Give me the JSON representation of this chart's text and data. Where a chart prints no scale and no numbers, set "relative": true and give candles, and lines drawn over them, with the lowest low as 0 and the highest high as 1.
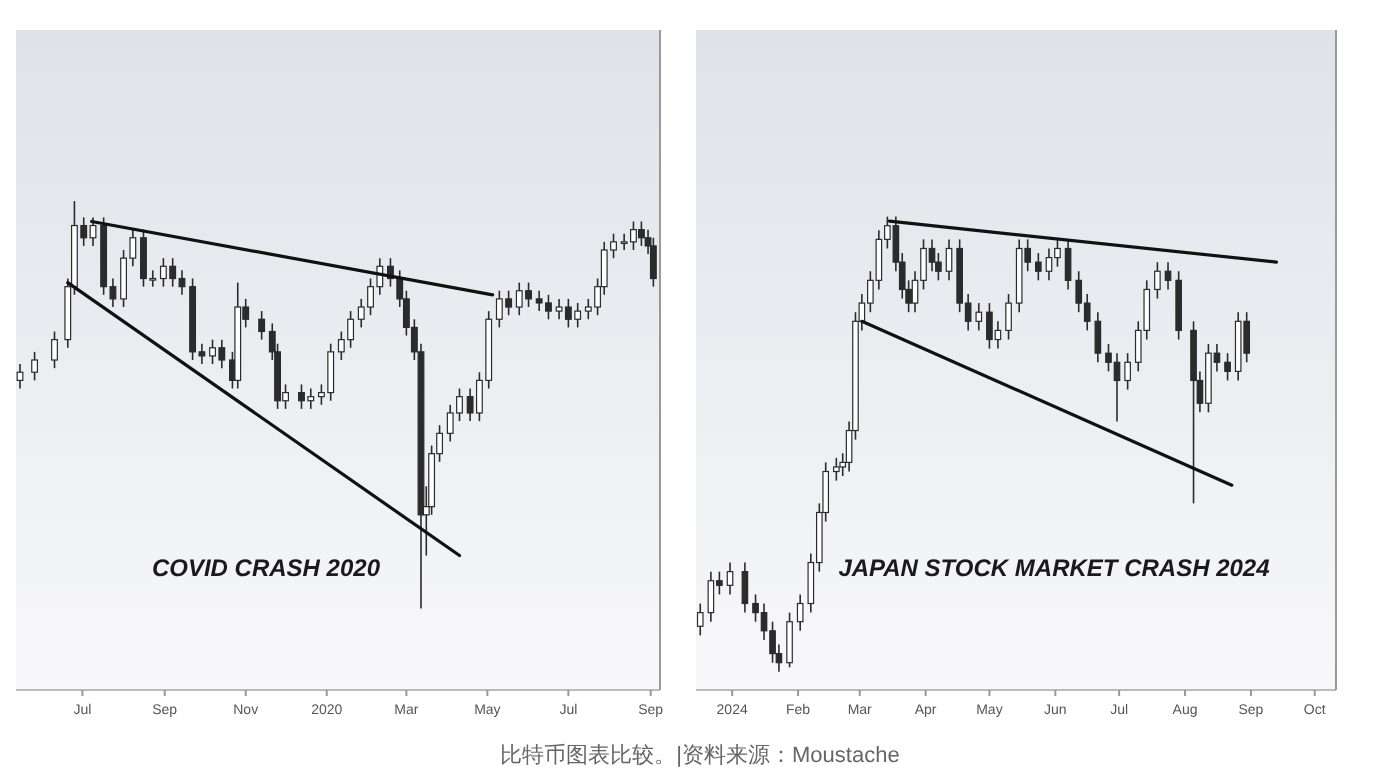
{
  "chart_data": [
    {
      "type": "candlestick",
      "relative": true,
      "xlim": [
        "2019-05-12",
        "2020-09-08"
      ],
      "xticks": [
        {
          "value": "2019-07-01",
          "label": "Jul"
        },
        {
          "value": "2019-09-01",
          "label": "Sep"
        },
        {
          "value": "2019-11-01",
          "label": "Nov"
        },
        {
          "value": "2020-01-01",
          "label": "2020"
        },
        {
          "value": "2020-03-01",
          "label": "Mar"
        },
        {
          "value": "2020-05-01",
          "label": "May"
        },
        {
          "value": "2020-07-01",
          "label": "Jul"
        },
        {
          "value": "2020-09-01",
          "label": "Sep"
        }
      ],
      "tick_labels": "x",
      "annotations": [
        "COVID CRASH 2020"
      ],
      "series": [
        {
          "color": "#2b2b2b",
          "x": [
            "2019-05-15",
            "2019-05-26",
            "2019-06-10",
            "2019-06-20",
            "2019-06-25",
            "2019-07-02",
            "2019-07-09",
            "2019-07-17",
            "2019-07-24",
            "2019-08-01",
            "2019-08-08",
            "2019-08-16",
            "2019-08-23",
            "2019-08-31",
            "2019-09-07",
            "2019-09-14",
            "2019-09-22",
            "2019-09-29",
            "2019-10-07",
            "2019-10-14",
            "2019-10-22",
            "2019-10-26",
            "2019-11-01",
            "2019-11-13",
            "2019-11-21",
            "2019-11-25",
            "2019-12-01",
            "2019-12-13",
            "2019-12-20",
            "2019-12-28",
            "2020-01-04",
            "2020-01-12",
            "2020-01-19",
            "2020-01-27",
            "2020-02-03",
            "2020-02-10",
            "2020-02-18",
            "2020-02-25",
            "2020-03-01",
            "2020-03-07",
            "2020-03-12",
            "2020-03-16",
            "2020-03-20",
            "2020-03-26",
            "2020-04-03",
            "2020-04-10",
            "2020-04-18",
            "2020-04-25",
            "2020-05-02",
            "2020-05-10",
            "2020-05-17",
            "2020-05-25",
            "2020-06-01",
            "2020-06-09",
            "2020-06-16",
            "2020-06-24",
            "2020-07-01",
            "2020-07-08",
            "2020-07-16",
            "2020-07-23",
            "2020-07-28",
            "2020-08-04",
            "2020-08-12",
            "2020-08-19",
            "2020-08-25",
            "2020-08-30",
            "2020-09-03"
          ],
          "ohlc": [
            [
              0.56,
              0.6,
              0.54,
              0.58
            ],
            [
              0.58,
              0.63,
              0.56,
              0.61
            ],
            [
              0.61,
              0.68,
              0.59,
              0.66
            ],
            [
              0.66,
              0.81,
              0.64,
              0.79
            ],
            [
              0.79,
              1,
              0.77,
              0.94
            ],
            [
              0.94,
              0.96,
              0.89,
              0.91
            ],
            [
              0.91,
              0.96,
              0.89,
              0.94
            ],
            [
              0.94,
              0.96,
              0.77,
              0.79
            ],
            [
              0.79,
              0.81,
              0.74,
              0.76
            ],
            [
              0.76,
              0.88,
              0.74,
              0.86
            ],
            [
              0.86,
              0.93,
              0.84,
              0.91
            ],
            [
              0.91,
              0.93,
              0.79,
              0.81
            ],
            [
              0.81,
              0.83,
              0.79,
              0.81
            ],
            [
              0.81,
              0.86,
              0.79,
              0.84
            ],
            [
              0.84,
              0.86,
              0.79,
              0.81
            ],
            [
              0.81,
              0.83,
              0.77,
              0.79
            ],
            [
              0.79,
              0.81,
              0.61,
              0.63
            ],
            [
              0.63,
              0.65,
              0.6,
              0.62
            ],
            [
              0.62,
              0.66,
              0.6,
              0.64
            ],
            [
              0.64,
              0.66,
              0.59,
              0.61
            ],
            [
              0.61,
              0.63,
              0.54,
              0.56
            ],
            [
              0.56,
              0.8,
              0.54,
              0.74
            ],
            [
              0.74,
              0.76,
              0.69,
              0.71
            ],
            [
              0.71,
              0.73,
              0.66,
              0.68
            ],
            [
              0.68,
              0.7,
              0.61,
              0.63
            ],
            [
              0.63,
              0.65,
              0.49,
              0.51
            ],
            [
              0.51,
              0.55,
              0.49,
              0.53
            ],
            [
              0.53,
              0.55,
              0.49,
              0.51
            ],
            [
              0.51,
              0.54,
              0.49,
              0.52
            ],
            [
              0.52,
              0.55,
              0.5,
              0.53
            ],
            [
              0.53,
              0.65,
              0.51,
              0.63
            ],
            [
              0.63,
              0.68,
              0.61,
              0.66
            ],
            [
              0.66,
              0.73,
              0.64,
              0.71
            ],
            [
              0.71,
              0.76,
              0.69,
              0.74
            ],
            [
              0.74,
              0.81,
              0.72,
              0.79
            ],
            [
              0.79,
              0.86,
              0.77,
              0.84
            ],
            [
              0.84,
              0.86,
              0.79,
              0.81
            ],
            [
              0.81,
              0.83,
              0.74,
              0.76
            ],
            [
              0.76,
              0.78,
              0.67,
              0.69
            ],
            [
              0.69,
              0.71,
              0.61,
              0.63
            ],
            [
              0.63,
              0.65,
              0,
              0.23
            ],
            [
              0.23,
              0.3,
              0.13,
              0.25
            ],
            [
              0.25,
              0.4,
              0.23,
              0.38
            ],
            [
              0.38,
              0.45,
              0.36,
              0.43
            ],
            [
              0.43,
              0.5,
              0.41,
              0.48
            ],
            [
              0.48,
              0.54,
              0.46,
              0.52
            ],
            [
              0.52,
              0.54,
              0.46,
              0.48
            ],
            [
              0.48,
              0.58,
              0.46,
              0.56
            ],
            [
              0.56,
              0.73,
              0.54,
              0.71
            ],
            [
              0.71,
              0.78,
              0.69,
              0.76
            ],
            [
              0.76,
              0.78,
              0.72,
              0.74
            ],
            [
              0.74,
              0.8,
              0.72,
              0.78
            ],
            [
              0.78,
              0.8,
              0.74,
              0.76
            ],
            [
              0.76,
              0.78,
              0.73,
              0.75
            ],
            [
              0.75,
              0.77,
              0.71,
              0.73
            ],
            [
              0.73,
              0.76,
              0.71,
              0.74
            ],
            [
              0.74,
              0.76,
              0.69,
              0.71
            ],
            [
              0.71,
              0.75,
              0.69,
              0.73
            ],
            [
              0.73,
              0.76,
              0.71,
              0.74
            ],
            [
              0.74,
              0.81,
              0.72,
              0.79
            ],
            [
              0.79,
              0.9,
              0.77,
              0.88
            ],
            [
              0.88,
              0.92,
              0.86,
              0.9
            ],
            [
              0.9,
              0.92,
              0.88,
              0.9
            ],
            [
              0.9,
              0.95,
              0.88,
              0.93
            ],
            [
              0.93,
              0.95,
              0.89,
              0.91
            ],
            [
              0.91,
              0.93,
              0.87,
              0.89
            ],
            [
              0.89,
              0.91,
              0.79,
              0.81
            ]
          ]
        },
        {
          "type": "line",
          "color": "#111111",
          "x": [
            "2019-07-08",
            "2020-05-05"
          ],
          "values": [
            0.95,
            0.77
          ]
        },
        {
          "type": "line",
          "color": "#111111",
          "x": [
            "2019-06-20",
            "2020-04-10"
          ],
          "values": [
            0.8,
            0.13
          ]
        }
      ]
    },
    {
      "type": "candlestick",
      "relative": true,
      "xlim": [
        "2023-12-15",
        "2024-10-11"
      ],
      "xticks": [
        {
          "value": "2024-01-01",
          "label": "2024"
        },
        {
          "value": "2024-02-01",
          "label": "Feb"
        },
        {
          "value": "2024-03-01",
          "label": "Mar"
        },
        {
          "value": "2024-04-01",
          "label": "Apr"
        },
        {
          "value": "2024-05-01",
          "label": "May"
        },
        {
          "value": "2024-06-01",
          "label": "Jun"
        },
        {
          "value": "2024-07-01",
          "label": "Jul"
        },
        {
          "value": "2024-08-01",
          "label": "Aug"
        },
        {
          "value": "2024-09-01",
          "label": "Sep"
        },
        {
          "value": "2024-10-01",
          "label": "Oct"
        }
      ],
      "tick_labels": "x",
      "annotations": [
        "JAPAN STOCK MARKET CRASH 2024",
        "比特币图表比较。|资料来源：Moustache"
      ],
      "series": [
        {
          "color": "#2b2b2b",
          "x": [
            "2023-12-17",
            "2023-12-22",
            "2023-12-26",
            "2023-12-31",
            "2024-01-07",
            "2024-01-12",
            "2024-01-16",
            "2024-01-20",
            "2024-01-23",
            "2024-01-28",
            "2024-02-02",
            "2024-02-07",
            "2024-02-11",
            "2024-02-14",
            "2024-02-19",
            "2024-02-22",
            "2024-02-25",
            "2024-02-28",
            "2024-03-02",
            "2024-03-06",
            "2024-03-10",
            "2024-03-14",
            "2024-03-18",
            "2024-03-21",
            "2024-03-24",
            "2024-03-27",
            "2024-03-31",
            "2024-04-04",
            "2024-04-07",
            "2024-04-12",
            "2024-04-17",
            "2024-04-21",
            "2024-04-26",
            "2024-05-01",
            "2024-05-05",
            "2024-05-10",
            "2024-05-15",
            "2024-05-19",
            "2024-05-24",
            "2024-05-29",
            "2024-06-02",
            "2024-06-07",
            "2024-06-12",
            "2024-06-16",
            "2024-06-21",
            "2024-06-26",
            "2024-06-30",
            "2024-07-05",
            "2024-07-10",
            "2024-07-14",
            "2024-07-19",
            "2024-07-24",
            "2024-07-29",
            "2024-08-05",
            "2024-08-08",
            "2024-08-12",
            "2024-08-16",
            "2024-08-21",
            "2024-08-26",
            "2024-08-30"
          ],
          "ohlc": [
            [
              0.1,
              0.15,
              0.08,
              0.13
            ],
            [
              0.13,
              0.22,
              0.11,
              0.2
            ],
            [
              0.2,
              0.22,
              0.17,
              0.19
            ],
            [
              0.19,
              0.24,
              0.17,
              0.22
            ],
            [
              0.22,
              0.24,
              0.13,
              0.15
            ],
            [
              0.15,
              0.17,
              0.11,
              0.13
            ],
            [
              0.13,
              0.15,
              0.07,
              0.09
            ],
            [
              0.09,
              0.11,
              0.02,
              0.04
            ],
            [
              0.04,
              0.06,
              0,
              0.02
            ],
            [
              0.02,
              0.13,
              0.01,
              0.11
            ],
            [
              0.11,
              0.17,
              0.09,
              0.15
            ],
            [
              0.15,
              0.26,
              0.13,
              0.24
            ],
            [
              0.24,
              0.37,
              0.22,
              0.35
            ],
            [
              0.35,
              0.46,
              0.33,
              0.44
            ],
            [
              0.44,
              0.47,
              0.42,
              0.45
            ],
            [
              0.45,
              0.48,
              0.43,
              0.46
            ],
            [
              0.46,
              0.55,
              0.44,
              0.53
            ],
            [
              0.53,
              0.79,
              0.51,
              0.77
            ],
            [
              0.77,
              0.83,
              0.75,
              0.81
            ],
            [
              0.81,
              0.88,
              0.79,
              0.86
            ],
            [
              0.86,
              0.97,
              0.84,
              0.95
            ],
            [
              0.95,
              1,
              0.93,
              0.98
            ],
            [
              0.98,
              1,
              0.88,
              0.9
            ],
            [
              0.9,
              0.92,
              0.82,
              0.84
            ],
            [
              0.84,
              0.86,
              0.79,
              0.81
            ],
            [
              0.81,
              0.88,
              0.79,
              0.86
            ],
            [
              0.86,
              0.95,
              0.84,
              0.93
            ],
            [
              0.93,
              0.95,
              0.88,
              0.9
            ],
            [
              0.9,
              0.92,
              0.86,
              0.88
            ],
            [
              0.88,
              0.95,
              0.86,
              0.93
            ],
            [
              0.93,
              0.95,
              0.79,
              0.81
            ],
            [
              0.81,
              0.83,
              0.75,
              0.77
            ],
            [
              0.77,
              0.81,
              0.75,
              0.79
            ],
            [
              0.79,
              0.81,
              0.71,
              0.73
            ],
            [
              0.73,
              0.77,
              0.71,
              0.75
            ],
            [
              0.75,
              0.83,
              0.73,
              0.81
            ],
            [
              0.81,
              0.95,
              0.79,
              0.93
            ],
            [
              0.93,
              0.95,
              0.88,
              0.9
            ],
            [
              0.9,
              0.92,
              0.86,
              0.88
            ],
            [
              0.88,
              0.93,
              0.86,
              0.91
            ],
            [
              0.91,
              0.95,
              0.89,
              0.93
            ],
            [
              0.93,
              0.95,
              0.84,
              0.86
            ],
            [
              0.86,
              0.88,
              0.79,
              0.81
            ],
            [
              0.81,
              0.83,
              0.75,
              0.77
            ],
            [
              0.77,
              0.79,
              0.68,
              0.7
            ],
            [
              0.7,
              0.72,
              0.66,
              0.68
            ],
            [
              0.68,
              0.7,
              0.55,
              0.64
            ],
            [
              0.64,
              0.7,
              0.62,
              0.68
            ],
            [
              0.68,
              0.77,
              0.66,
              0.75
            ],
            [
              0.75,
              0.86,
              0.73,
              0.84
            ],
            [
              0.84,
              0.9,
              0.82,
              0.88
            ],
            [
              0.88,
              0.9,
              0.84,
              0.86
            ],
            [
              0.86,
              0.88,
              0.73,
              0.75
            ],
            [
              0.75,
              0.77,
              0.37,
              0.64
            ],
            [
              0.64,
              0.66,
              0.57,
              0.59
            ],
            [
              0.59,
              0.72,
              0.57,
              0.7
            ],
            [
              0.7,
              0.72,
              0.66,
              0.68
            ],
            [
              0.68,
              0.7,
              0.64,
              0.66
            ],
            [
              0.66,
              0.79,
              0.64,
              0.77
            ],
            [
              0.77,
              0.79,
              0.68,
              0.7
            ]
          ]
        },
        {
          "type": "line",
          "color": "#111111",
          "x": [
            "2024-03-15",
            "2024-09-13"
          ],
          "values": [
            0.99,
            0.9
          ]
        },
        {
          "type": "line",
          "color": "#111111",
          "x": [
            "2024-03-02",
            "2024-08-23"
          ],
          "values": [
            0.77,
            0.41
          ]
        }
      ]
    }
  ]
}
